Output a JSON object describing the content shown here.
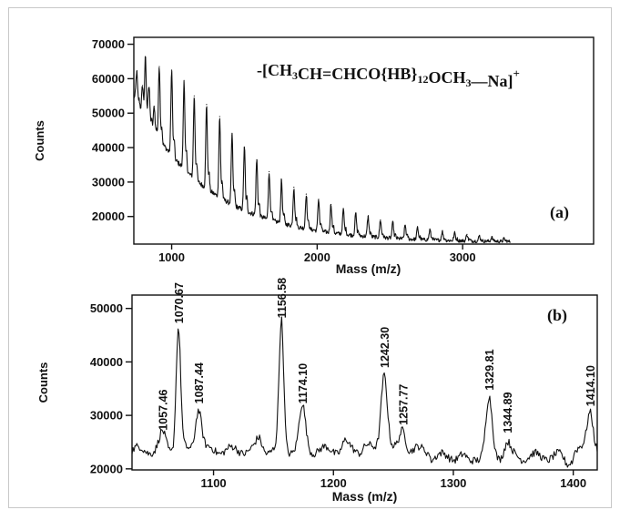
{
  "chart_data": [
    {
      "type": "line",
      "panel_label": "(a)",
      "annotation": "-[CH3CH=CHCO{HB}12OCH3—Na]+",
      "annotation_parts": {
        "lead": "-[CH",
        "sub1": "3",
        "mid1": "CH=CHCO{HB}",
        "sub2": "12",
        "mid2": "OCH",
        "sub3": "3",
        "tail": "—Na]",
        "sup": "+"
      },
      "xlabel": "Mass (m/z)",
      "ylabel": "Counts",
      "xlim": [
        740,
        3900
      ],
      "ylim": [
        12000,
        72000
      ],
      "x_ticks": [
        1000,
        2000,
        3000
      ],
      "y_ticks": [
        20000,
        30000,
        40000,
        50000,
        60000,
        70000
      ],
      "baseline": {
        "start": 55000,
        "floor": 12500,
        "decay": 500,
        "offset": 740
      },
      "peaks": [
        {
          "x": 760,
          "y": 62000
        },
        {
          "x": 800,
          "y": 58000
        },
        {
          "x": 820,
          "y": 65000
        },
        {
          "x": 845,
          "y": 57000
        },
        {
          "x": 880,
          "y": 52000
        },
        {
          "x": 915,
          "y": 63500
        },
        {
          "x": 1000,
          "y": 62500
        },
        {
          "x": 1085,
          "y": 59500
        },
        {
          "x": 1155,
          "y": 55000
        },
        {
          "x": 1240,
          "y": 52500
        },
        {
          "x": 1330,
          "y": 49000
        },
        {
          "x": 1415,
          "y": 43500
        },
        {
          "x": 1500,
          "y": 40000
        },
        {
          "x": 1585,
          "y": 36500
        },
        {
          "x": 1670,
          "y": 33000
        },
        {
          "x": 1755,
          "y": 30500
        },
        {
          "x": 1840,
          "y": 28500
        },
        {
          "x": 1925,
          "y": 26500
        },
        {
          "x": 2010,
          "y": 25000
        },
        {
          "x": 2095,
          "y": 23500
        },
        {
          "x": 2180,
          "y": 22000
        },
        {
          "x": 2265,
          "y": 21000
        },
        {
          "x": 2350,
          "y": 20000
        },
        {
          "x": 2435,
          "y": 19000
        },
        {
          "x": 2520,
          "y": 18200
        },
        {
          "x": 2605,
          "y": 17500
        },
        {
          "x": 2690,
          "y": 16800
        },
        {
          "x": 2775,
          "y": 16200
        },
        {
          "x": 2860,
          "y": 15700
        },
        {
          "x": 2945,
          "y": 15200
        },
        {
          "x": 3030,
          "y": 14800
        },
        {
          "x": 3115,
          "y": 14400
        },
        {
          "x": 3200,
          "y": 14000
        },
        {
          "x": 3285,
          "y": 13600
        }
      ]
    },
    {
      "type": "line",
      "panel_label": "(b)",
      "xlabel": "Mass (m/z)",
      "ylabel": "Counts",
      "xlim": [
        1032,
        1420
      ],
      "ylim": [
        19800,
        52500
      ],
      "x_ticks": [
        1100,
        1200,
        1300,
        1400
      ],
      "y_ticks": [
        20000,
        30000,
        40000,
        50000
      ],
      "baseline": 23500,
      "peaks": [
        {
          "x": 1057.46,
          "y": 26500,
          "label": "1057.46"
        },
        {
          "x": 1070.67,
          "y": 46500,
          "label": "1070.67"
        },
        {
          "x": 1087.44,
          "y": 31500,
          "label": "1087.44"
        },
        {
          "x": 1156.58,
          "y": 47500,
          "label": "1156.58"
        },
        {
          "x": 1174.1,
          "y": 31500,
          "label": "1174.10"
        },
        {
          "x": 1242.3,
          "y": 38200,
          "label": "1242.30"
        },
        {
          "x": 1257.77,
          "y": 27500,
          "label": "1257.77"
        },
        {
          "x": 1329.81,
          "y": 34000,
          "label": "1329.81"
        },
        {
          "x": 1344.89,
          "y": 26000,
          "label": "1344.89"
        },
        {
          "x": 1414.1,
          "y": 31000,
          "label": "1414.10"
        }
      ],
      "minor_peaks": [
        {
          "x": 1138,
          "y": 25500
        },
        {
          "x": 1210,
          "y": 25000
        },
        {
          "x": 1227,
          "y": 24500
        },
        {
          "x": 1313,
          "y": 22500
        },
        {
          "x": 1395,
          "y": 22500
        }
      ]
    }
  ]
}
